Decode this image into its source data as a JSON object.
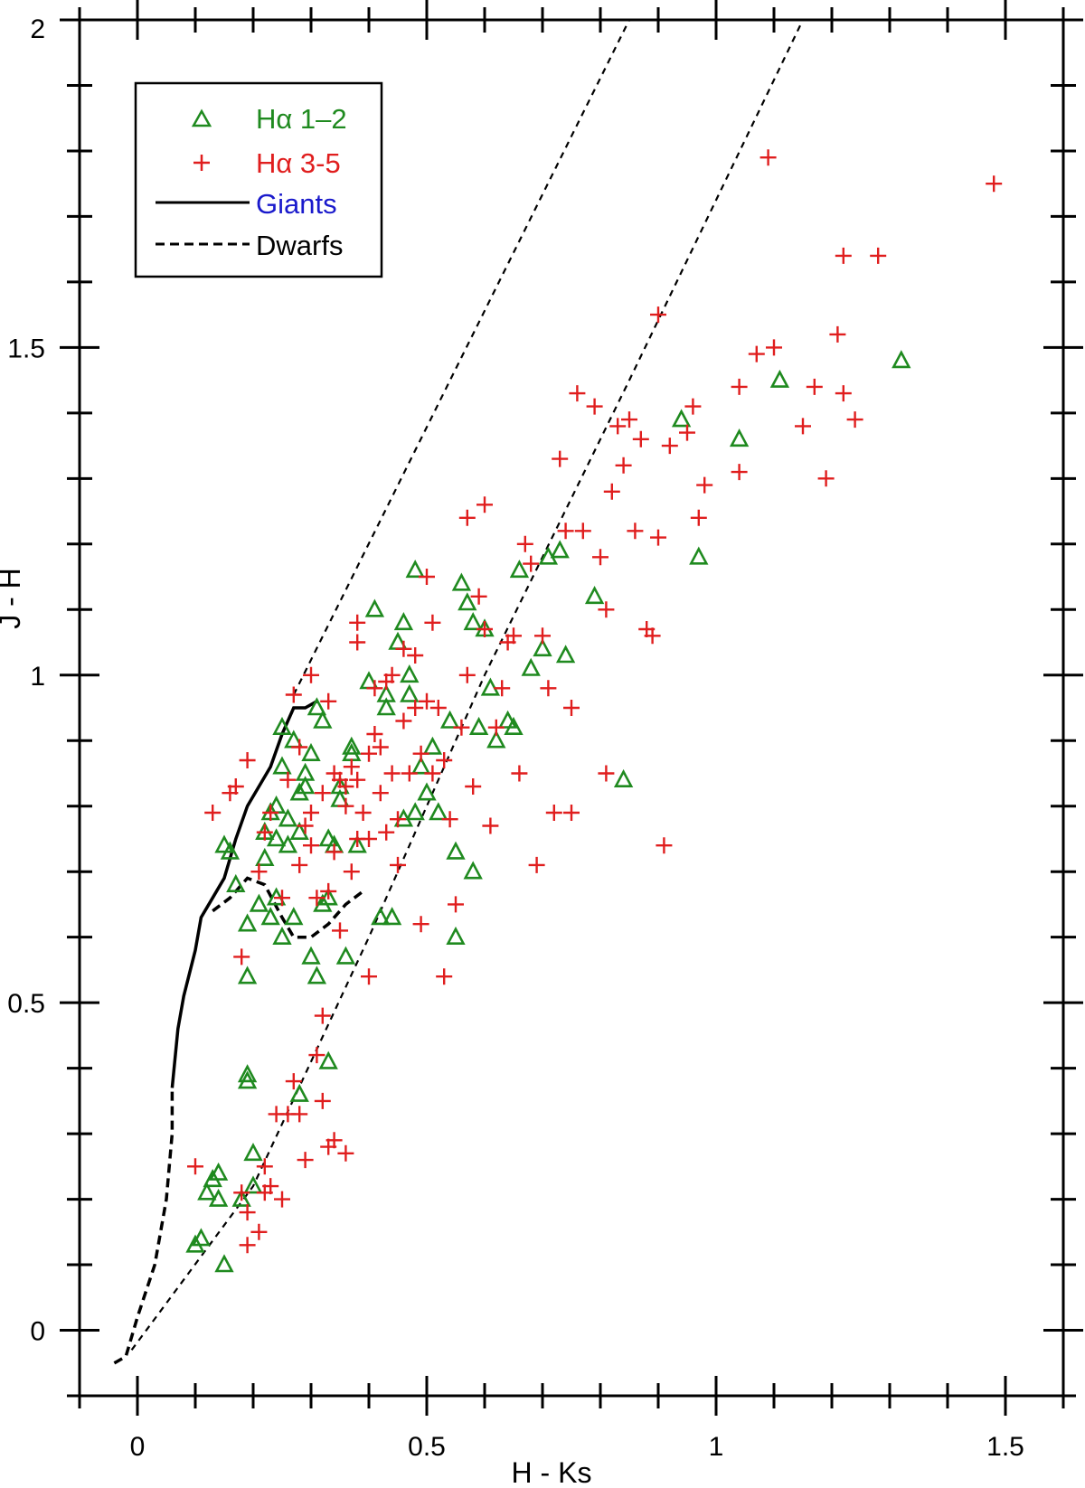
{
  "chart_data": {
    "type": "scatter",
    "xlabel": "H - Ks",
    "ylabel": "J - H",
    "xlim": [
      -0.1,
      1.6
    ],
    "ylim": [
      -0.1,
      2.0
    ],
    "x_ticks": [
      "0",
      "0.5",
      "1",
      "1.5"
    ],
    "y_ticks": [
      "0",
      "0.5",
      "1",
      "1.5",
      "2"
    ],
    "x_tick_values": [
      0,
      0.5,
      1,
      1.5
    ],
    "y_tick_values": [
      0,
      0.5,
      1,
      1.5,
      2
    ],
    "grid": false,
    "legend_placement": "top-left",
    "legend": {
      "ha12": "Hα 1–2",
      "ha35": "Hα 3-5",
      "giants": "Giants",
      "dwarfs": "Dwarfs"
    },
    "colors": {
      "ha12": "#1f8a1f",
      "ha35": "#e01e1e",
      "giants_label": "#1a1acc",
      "lines": "#000000"
    },
    "series": [
      {
        "name": "Hα 1–2",
        "marker": "triangle",
        "points": [
          [
            0.1,
            0.13
          ],
          [
            0.11,
            0.14
          ],
          [
            0.15,
            0.1
          ],
          [
            0.12,
            0.21
          ],
          [
            0.13,
            0.23
          ],
          [
            0.14,
            0.24
          ],
          [
            0.14,
            0.2
          ],
          [
            0.18,
            0.2
          ],
          [
            0.2,
            0.27
          ],
          [
            0.2,
            0.22
          ],
          [
            0.19,
            0.39
          ],
          [
            0.19,
            0.38
          ],
          [
            0.28,
            0.36
          ],
          [
            0.33,
            0.41
          ],
          [
            0.15,
            0.74
          ],
          [
            0.16,
            0.73
          ],
          [
            0.17,
            0.68
          ],
          [
            0.19,
            0.62
          ],
          [
            0.19,
            0.54
          ],
          [
            0.21,
            0.65
          ],
          [
            0.22,
            0.72
          ],
          [
            0.22,
            0.76
          ],
          [
            0.23,
            0.63
          ],
          [
            0.23,
            0.79
          ],
          [
            0.24,
            0.8
          ],
          [
            0.24,
            0.75
          ],
          [
            0.24,
            0.66
          ],
          [
            0.25,
            0.6
          ],
          [
            0.25,
            0.86
          ],
          [
            0.25,
            0.92
          ],
          [
            0.26,
            0.74
          ],
          [
            0.26,
            0.78
          ],
          [
            0.27,
            0.63
          ],
          [
            0.27,
            0.9
          ],
          [
            0.28,
            0.82
          ],
          [
            0.28,
            0.76
          ],
          [
            0.29,
            0.83
          ],
          [
            0.29,
            0.85
          ],
          [
            0.3,
            0.88
          ],
          [
            0.3,
            0.57
          ],
          [
            0.31,
            0.95
          ],
          [
            0.31,
            0.54
          ],
          [
            0.32,
            0.93
          ],
          [
            0.32,
            0.65
          ],
          [
            0.33,
            0.66
          ],
          [
            0.33,
            0.75
          ],
          [
            0.34,
            0.74
          ],
          [
            0.35,
            0.83
          ],
          [
            0.35,
            0.81
          ],
          [
            0.36,
            0.57
          ],
          [
            0.37,
            0.88
          ],
          [
            0.37,
            0.89
          ],
          [
            0.38,
            0.74
          ],
          [
            0.4,
            0.99
          ],
          [
            0.41,
            1.1
          ],
          [
            0.42,
            0.63
          ],
          [
            0.43,
            0.95
          ],
          [
            0.43,
            0.97
          ],
          [
            0.44,
            0.63
          ],
          [
            0.45,
            1.05
          ],
          [
            0.46,
            1.08
          ],
          [
            0.46,
            0.78
          ],
          [
            0.47,
            0.97
          ],
          [
            0.47,
            1.0
          ],
          [
            0.48,
            0.79
          ],
          [
            0.48,
            1.16
          ],
          [
            0.49,
            0.86
          ],
          [
            0.5,
            0.82
          ],
          [
            0.51,
            0.89
          ],
          [
            0.52,
            0.79
          ],
          [
            0.54,
            0.93
          ],
          [
            0.55,
            0.73
          ],
          [
            0.55,
            0.6
          ],
          [
            0.56,
            1.14
          ],
          [
            0.57,
            1.11
          ],
          [
            0.58,
            1.08
          ],
          [
            0.58,
            0.7
          ],
          [
            0.59,
            0.92
          ],
          [
            0.6,
            1.07
          ],
          [
            0.61,
            0.98
          ],
          [
            0.62,
            0.9
          ],
          [
            0.64,
            0.93
          ],
          [
            0.65,
            0.92
          ],
          [
            0.66,
            1.16
          ],
          [
            0.68,
            1.01
          ],
          [
            0.7,
            1.04
          ],
          [
            0.71,
            1.18
          ],
          [
            0.73,
            1.19
          ],
          [
            0.74,
            1.03
          ],
          [
            0.79,
            1.12
          ],
          [
            0.84,
            0.84
          ],
          [
            0.94,
            1.39
          ],
          [
            0.97,
            1.18
          ],
          [
            1.04,
            1.36
          ],
          [
            1.11,
            1.45
          ],
          [
            1.32,
            1.48
          ]
        ]
      },
      {
        "name": "Hα 3-5",
        "marker": "plus",
        "points": [
          [
            0.1,
            0.25
          ],
          [
            0.18,
            0.21
          ],
          [
            0.19,
            0.18
          ],
          [
            0.19,
            0.13
          ],
          [
            0.21,
            0.15
          ],
          [
            0.22,
            0.21
          ],
          [
            0.22,
            0.25
          ],
          [
            0.23,
            0.22
          ],
          [
            0.24,
            0.33
          ],
          [
            0.25,
            0.2
          ],
          [
            0.26,
            0.33
          ],
          [
            0.27,
            0.38
          ],
          [
            0.28,
            0.33
          ],
          [
            0.29,
            0.26
          ],
          [
            0.31,
            0.42
          ],
          [
            0.32,
            0.48
          ],
          [
            0.32,
            0.35
          ],
          [
            0.33,
            0.28
          ],
          [
            0.34,
            0.29
          ],
          [
            0.36,
            0.27
          ],
          [
            0.13,
            0.79
          ],
          [
            0.16,
            0.82
          ],
          [
            0.17,
            0.83
          ],
          [
            0.18,
            0.57
          ],
          [
            0.19,
            0.87
          ],
          [
            0.21,
            0.7
          ],
          [
            0.22,
            0.76
          ],
          [
            0.23,
            0.79
          ],
          [
            0.25,
            0.66
          ],
          [
            0.26,
            0.84
          ],
          [
            0.27,
            0.97
          ],
          [
            0.28,
            0.89
          ],
          [
            0.28,
            0.71
          ],
          [
            0.29,
            0.77
          ],
          [
            0.3,
            0.79
          ],
          [
            0.3,
            1.0
          ],
          [
            0.3,
            0.74
          ],
          [
            0.31,
            0.66
          ],
          [
            0.32,
            0.82
          ],
          [
            0.33,
            0.96
          ],
          [
            0.33,
            0.67
          ],
          [
            0.34,
            0.73
          ],
          [
            0.34,
            0.85
          ],
          [
            0.35,
            0.84
          ],
          [
            0.35,
            0.61
          ],
          [
            0.36,
            0.8
          ],
          [
            0.36,
            0.83
          ],
          [
            0.37,
            0.86
          ],
          [
            0.37,
            0.7
          ],
          [
            0.38,
            0.84
          ],
          [
            0.38,
            0.75
          ],
          [
            0.38,
            1.08
          ],
          [
            0.38,
            1.05
          ],
          [
            0.39,
            0.79
          ],
          [
            0.4,
            0.88
          ],
          [
            0.4,
            0.75
          ],
          [
            0.4,
            0.54
          ],
          [
            0.41,
            0.91
          ],
          [
            0.41,
            0.98
          ],
          [
            0.42,
            0.82
          ],
          [
            0.42,
            0.89
          ],
          [
            0.43,
            0.76
          ],
          [
            0.43,
            0.99
          ],
          [
            0.44,
            1.0
          ],
          [
            0.44,
            0.85
          ],
          [
            0.45,
            0.71
          ],
          [
            0.45,
            0.78
          ],
          [
            0.46,
            1.04
          ],
          [
            0.46,
            0.93
          ],
          [
            0.47,
            0.85
          ],
          [
            0.48,
            0.95
          ],
          [
            0.48,
            1.03
          ],
          [
            0.49,
            0.88
          ],
          [
            0.49,
            0.62
          ],
          [
            0.5,
            1.15
          ],
          [
            0.5,
            0.96
          ],
          [
            0.51,
            1.08
          ],
          [
            0.51,
            0.85
          ],
          [
            0.52,
            0.95
          ],
          [
            0.53,
            0.87
          ],
          [
            0.53,
            0.54
          ],
          [
            0.54,
            0.78
          ],
          [
            0.55,
            0.65
          ],
          [
            0.56,
            0.92
          ],
          [
            0.57,
            1.24
          ],
          [
            0.57,
            1.0
          ],
          [
            0.58,
            0.83
          ],
          [
            0.59,
            1.12
          ],
          [
            0.6,
            1.26
          ],
          [
            0.6,
            1.07
          ],
          [
            0.61,
            0.77
          ],
          [
            0.62,
            0.92
          ],
          [
            0.63,
            0.98
          ],
          [
            0.64,
            1.05
          ],
          [
            0.65,
            1.06
          ],
          [
            0.66,
            0.85
          ],
          [
            0.67,
            1.2
          ],
          [
            0.68,
            1.17
          ],
          [
            0.69,
            0.71
          ],
          [
            0.7,
            1.06
          ],
          [
            0.71,
            0.98
          ],
          [
            0.72,
            0.79
          ],
          [
            0.73,
            1.33
          ],
          [
            0.74,
            1.22
          ],
          [
            0.75,
            0.95
          ],
          [
            0.75,
            0.79
          ],
          [
            0.76,
            1.43
          ],
          [
            0.77,
            1.22
          ],
          [
            0.79,
            1.41
          ],
          [
            0.8,
            1.18
          ],
          [
            0.81,
            1.1
          ],
          [
            0.81,
            0.85
          ],
          [
            0.82,
            1.28
          ],
          [
            0.83,
            1.38
          ],
          [
            0.84,
            1.32
          ],
          [
            0.85,
            1.39
          ],
          [
            0.86,
            1.22
          ],
          [
            0.87,
            1.36
          ],
          [
            0.88,
            1.07
          ],
          [
            0.89,
            1.06
          ],
          [
            0.9,
            1.21
          ],
          [
            0.91,
            0.74
          ],
          [
            0.92,
            1.35
          ],
          [
            0.95,
            1.37
          ],
          [
            0.96,
            1.41
          ],
          [
            0.97,
            1.24
          ],
          [
            0.98,
            1.29
          ],
          [
            1.04,
            1.31
          ],
          [
            1.04,
            1.44
          ],
          [
            1.07,
            1.49
          ],
          [
            1.1,
            1.5
          ],
          [
            1.15,
            1.38
          ],
          [
            1.17,
            1.44
          ],
          [
            1.19,
            1.3
          ],
          [
            1.21,
            1.52
          ],
          [
            1.22,
            1.43
          ],
          [
            1.22,
            1.64
          ],
          [
            1.24,
            1.39
          ],
          [
            1.28,
            1.64
          ],
          [
            1.09,
            1.79
          ],
          [
            0.9,
            1.55
          ],
          [
            1.48,
            1.75
          ]
        ]
      }
    ],
    "lines": [
      {
        "name": "Giants",
        "style": "solid",
        "points": [
          [
            0.06,
            0.37
          ],
          [
            0.07,
            0.46
          ],
          [
            0.08,
            0.51
          ],
          [
            0.1,
            0.58
          ],
          [
            0.11,
            0.63
          ],
          [
            0.13,
            0.66
          ],
          [
            0.15,
            0.69
          ],
          [
            0.17,
            0.75
          ],
          [
            0.19,
            0.8
          ],
          [
            0.21,
            0.83
          ],
          [
            0.23,
            0.86
          ],
          [
            0.25,
            0.91
          ],
          [
            0.27,
            0.95
          ],
          [
            0.29,
            0.95
          ],
          [
            0.31,
            0.96
          ]
        ]
      },
      {
        "name": "Dwarfs",
        "style": "dashed",
        "points": [
          [
            -0.04,
            -0.05
          ],
          [
            -0.02,
            -0.04
          ],
          [
            0.0,
            0.02
          ],
          [
            0.03,
            0.1
          ],
          [
            0.05,
            0.2
          ],
          [
            0.06,
            0.3
          ],
          [
            0.06,
            0.37
          ]
        ]
      },
      {
        "name": "Dwarfs",
        "style": "dashed",
        "points": [
          [
            0.13,
            0.64
          ],
          [
            0.16,
            0.66
          ],
          [
            0.19,
            0.69
          ],
          [
            0.22,
            0.68
          ],
          [
            0.25,
            0.63
          ],
          [
            0.27,
            0.6
          ],
          [
            0.3,
            0.6
          ],
          [
            0.33,
            0.62
          ],
          [
            0.36,
            0.65
          ],
          [
            0.39,
            0.67
          ]
        ]
      },
      {
        "name": "Reddening band upper",
        "style": "dashed-thin",
        "points": [
          [
            0.27,
            0.97
          ],
          [
            0.85,
            2.0
          ]
        ]
      },
      {
        "name": "Reddening band lower",
        "style": "dashed-thin",
        "points": [
          [
            -0.01,
            -0.03
          ],
          [
            0.2,
            0.22
          ],
          [
            0.4,
            0.6
          ],
          [
            0.6,
            1.0
          ],
          [
            0.85,
            1.45
          ],
          [
            1.15,
            2.0
          ]
        ]
      }
    ]
  }
}
